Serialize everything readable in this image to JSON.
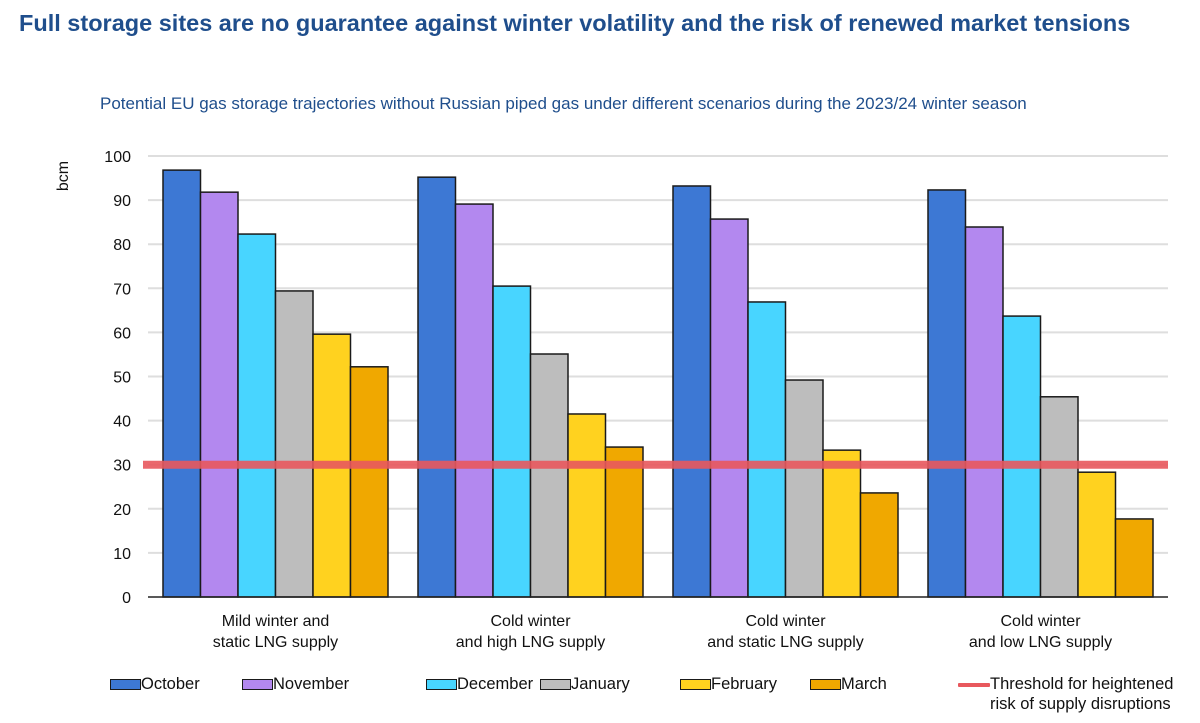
{
  "header": {
    "title": "Full storage sites are no guarantee against winter volatility and the risk of renewed market tensions",
    "subtitle": "Potential EU gas storage trajectories without Russian piped gas under different scenarios during the 2023/24 winter season"
  },
  "chart_data": {
    "type": "bar",
    "title": "Potential EU gas storage trajectories without Russian piped gas under different scenarios during the 2023/24 winter season",
    "xlabel": "",
    "ylabel": "bcm",
    "ylim": [
      0,
      100
    ],
    "yticks": [
      0,
      10,
      20,
      30,
      40,
      50,
      60,
      70,
      80,
      90,
      100
    ],
    "grid": true,
    "legend_position": "bottom",
    "categories": [
      "Mild winter and\nstatic LNG supply",
      "Cold winter\nand high LNG supply",
      "Cold winter\nand static LNG supply",
      "Cold winter\nand low LNG supply"
    ],
    "series": [
      {
        "name": "October",
        "color": "#3d78d4",
        "values": [
          96.8,
          95.2,
          93.2,
          92.3
        ]
      },
      {
        "name": "November",
        "color": "#b388ef",
        "values": [
          91.8,
          89.1,
          85.7,
          83.9
        ]
      },
      {
        "name": "December",
        "color": "#48d5ff",
        "values": [
          82.3,
          70.5,
          66.9,
          63.7
        ]
      },
      {
        "name": "January",
        "color": "#bdbdbd",
        "values": [
          69.4,
          55.1,
          49.2,
          45.4
        ]
      },
      {
        "name": "February",
        "color": "#ffd21f",
        "values": [
          59.6,
          41.5,
          33.3,
          28.3
        ]
      },
      {
        "name": "March",
        "color": "#f0a800",
        "values": [
          52.2,
          34.0,
          23.6,
          17.7
        ]
      }
    ],
    "reference_lines": [
      {
        "name": "Threshold for heightened\nrisk of supply disruptions",
        "value": 30,
        "color": "#e8585d"
      }
    ]
  }
}
